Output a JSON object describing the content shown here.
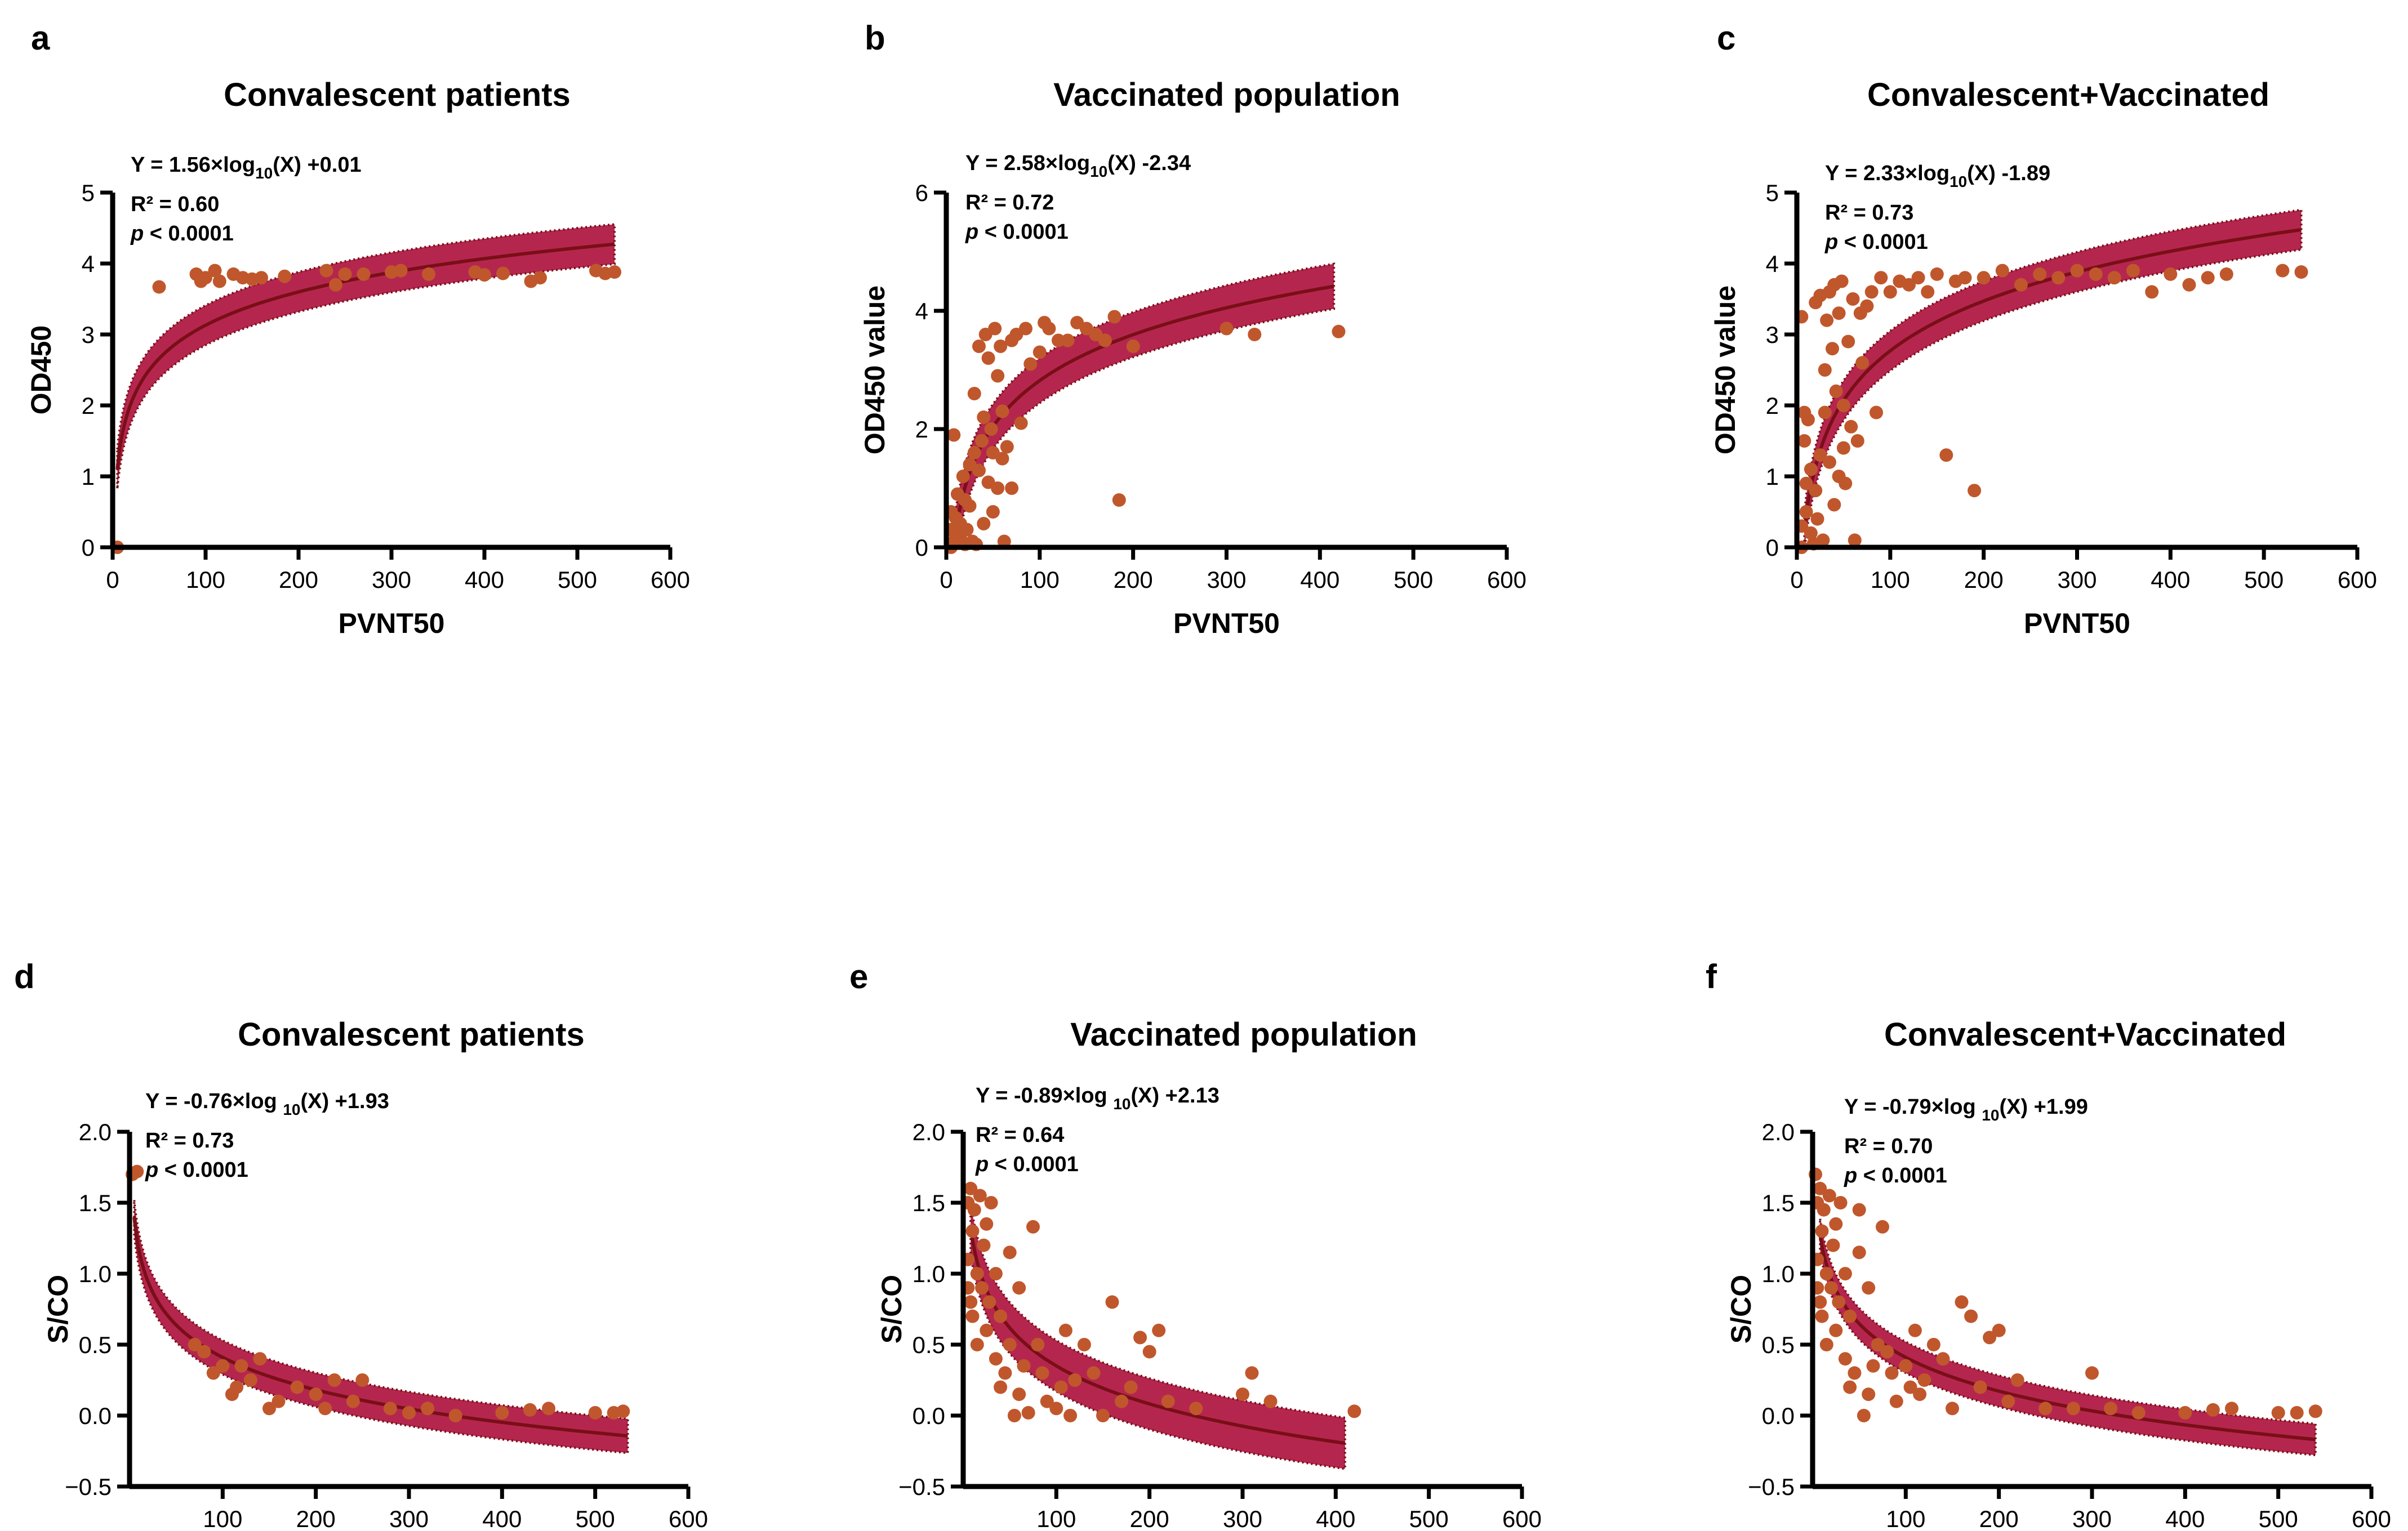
{
  "colors": {
    "band": "#b5264f",
    "fit": "#7a0f17",
    "point": "#c0572c",
    "axis": "#000000"
  },
  "chart_data": [
    {
      "id": "a",
      "letter": "a",
      "type": "scatter",
      "title": "Convalescent patients",
      "xlabel": "PVNT50",
      "ylabel": "OD450",
      "xlim": [
        0,
        600
      ],
      "ylim": [
        0,
        5
      ],
      "xticks": [
        "0",
        "100",
        "200",
        "300",
        "400",
        "500",
        "600"
      ],
      "yticks": [
        "0",
        "1",
        "2",
        "3",
        "4",
        "5"
      ],
      "equation": {
        "lhs": "Y = 1.56×log",
        "sub": "10",
        "rhs": "(X) +0.01"
      },
      "r2": "R² = 0.60",
      "p": "< 0.0001",
      "fit": {
        "a": 1.56,
        "b": 0.01,
        "x_from": 5,
        "x_to": 540,
        "band_halfwidth": 0.28
      },
      "points": [
        [
          5,
          0
        ],
        [
          50,
          3.67
        ],
        [
          90,
          3.85
        ],
        [
          95,
          3.75
        ],
        [
          100,
          3.8
        ],
        [
          110,
          3.9
        ],
        [
          115,
          3.75
        ],
        [
          130,
          3.85
        ],
        [
          140,
          3.8
        ],
        [
          150,
          3.78
        ],
        [
          160,
          3.8
        ],
        [
          185,
          3.82
        ],
        [
          230,
          3.9
        ],
        [
          240,
          3.7
        ],
        [
          250,
          3.85
        ],
        [
          270,
          3.85
        ],
        [
          300,
          3.88
        ],
        [
          310,
          3.9
        ],
        [
          340,
          3.85
        ],
        [
          390,
          3.88
        ],
        [
          400,
          3.84
        ],
        [
          420,
          3.86
        ],
        [
          450,
          3.75
        ],
        [
          460,
          3.8
        ],
        [
          520,
          3.9
        ],
        [
          530,
          3.86
        ],
        [
          540,
          3.88
        ]
      ]
    },
    {
      "id": "b",
      "letter": "b",
      "type": "scatter",
      "title": "Vaccinated population",
      "xlabel": "PVNT50",
      "ylabel": "OD450 value",
      "xlim": [
        0,
        600
      ],
      "ylim": [
        0,
        6
      ],
      "xticks": [
        "0",
        "100",
        "200",
        "300",
        "400",
        "500",
        "600"
      ],
      "yticks": [
        "0",
        "2",
        "4",
        "6"
      ],
      "equation": {
        "lhs": "Y = 2.58×log",
        "sub": "10",
        "rhs": "(X) -2.34"
      },
      "r2": "R² = 0.72",
      "p": "< 0.0001",
      "fit": {
        "a": 2.58,
        "b": -2.34,
        "x_from": 8,
        "x_to": 415,
        "band_halfwidth": 0.38
      },
      "points": [
        [
          5,
          0
        ],
        [
          5,
          0.3
        ],
        [
          5,
          0.6
        ],
        [
          8,
          1.9
        ],
        [
          8,
          0.1
        ],
        [
          10,
          0.5
        ],
        [
          12,
          0.9
        ],
        [
          15,
          0.2
        ],
        [
          15,
          0.4
        ],
        [
          18,
          1.2
        ],
        [
          20,
          0.8
        ],
        [
          20,
          0.05
        ],
        [
          22,
          0.3
        ],
        [
          25,
          1.4
        ],
        [
          25,
          0.7
        ],
        [
          28,
          0.1
        ],
        [
          30,
          1.6
        ],
        [
          30,
          2.6
        ],
        [
          32,
          0.05
        ],
        [
          35,
          1.3
        ],
        [
          35,
          3.4
        ],
        [
          38,
          1.8
        ],
        [
          40,
          2.2
        ],
        [
          40,
          0.4
        ],
        [
          42,
          3.6
        ],
        [
          45,
          3.2
        ],
        [
          45,
          1.1
        ],
        [
          48,
          2.0
        ],
        [
          50,
          1.6
        ],
        [
          50,
          0.6
        ],
        [
          52,
          3.7
        ],
        [
          55,
          2.9
        ],
        [
          55,
          1.0
        ],
        [
          58,
          3.4
        ],
        [
          60,
          2.3
        ],
        [
          60,
          1.5
        ],
        [
          62,
          0.1
        ],
        [
          65,
          1.7
        ],
        [
          70,
          3.5
        ],
        [
          70,
          1.0
        ],
        [
          75,
          3.6
        ],
        [
          80,
          2.1
        ],
        [
          85,
          3.7
        ],
        [
          90,
          3.1
        ],
        [
          100,
          3.3
        ],
        [
          105,
          3.8
        ],
        [
          110,
          3.7
        ],
        [
          120,
          3.5
        ],
        [
          130,
          3.5
        ],
        [
          140,
          3.8
        ],
        [
          150,
          3.7
        ],
        [
          160,
          3.6
        ],
        [
          170,
          3.5
        ],
        [
          180,
          3.9
        ],
        [
          185,
          0.8
        ],
        [
          200,
          3.4
        ],
        [
          300,
          3.7
        ],
        [
          330,
          3.6
        ],
        [
          420,
          3.65
        ]
      ]
    },
    {
      "id": "c",
      "letter": "c",
      "type": "scatter",
      "title": "Convalescent+Vaccinated",
      "xlabel": "PVNT50",
      "ylabel": "OD450 value",
      "xlim": [
        0,
        600
      ],
      "ylim": [
        0,
        5
      ],
      "xticks": [
        "0",
        "100",
        "200",
        "300",
        "400",
        "500",
        "600"
      ],
      "yticks": [
        "0",
        "1",
        "2",
        "3",
        "4",
        "5"
      ],
      "equation": {
        "lhs": "Y = 2.33×log",
        "sub": "10",
        "rhs": "(X) -1.89"
      },
      "r2": "R² = 0.73",
      "p": "< 0.0001",
      "fit": {
        "a": 2.33,
        "b": -1.89,
        "x_from": 8,
        "x_to": 540,
        "band_halfwidth": 0.28
      },
      "points": [
        [
          5,
          0
        ],
        [
          5,
          0.3
        ],
        [
          5,
          3.25
        ],
        [
          8,
          1.9
        ],
        [
          8,
          1.5
        ],
        [
          10,
          0.5
        ],
        [
          10,
          0.9
        ],
        [
          12,
          1.8
        ],
        [
          15,
          0.2
        ],
        [
          15,
          1.1
        ],
        [
          18,
          0.05
        ],
        [
          20,
          0.8
        ],
        [
          20,
          3.45
        ],
        [
          22,
          0.4
        ],
        [
          25,
          1.3
        ],
        [
          25,
          3.55
        ],
        [
          28,
          0.1
        ],
        [
          30,
          1.9
        ],
        [
          30,
          2.5
        ],
        [
          32,
          3.2
        ],
        [
          35,
          1.2
        ],
        [
          35,
          3.6
        ],
        [
          38,
          2.8
        ],
        [
          40,
          3.7
        ],
        [
          40,
          0.6
        ],
        [
          42,
          2.2
        ],
        [
          45,
          3.3
        ],
        [
          45,
          1.0
        ],
        [
          48,
          3.75
        ],
        [
          50,
          2.0
        ],
        [
          50,
          1.4
        ],
        [
          52,
          0.9
        ],
        [
          55,
          2.9
        ],
        [
          58,
          1.7
        ],
        [
          60,
          3.5
        ],
        [
          62,
          0.1
        ],
        [
          65,
          1.5
        ],
        [
          68,
          3.3
        ],
        [
          70,
          2.6
        ],
        [
          75,
          3.4
        ],
        [
          80,
          3.6
        ],
        [
          85,
          1.9
        ],
        [
          90,
          3.8
        ],
        [
          100,
          3.6
        ],
        [
          110,
          3.75
        ],
        [
          120,
          3.7
        ],
        [
          130,
          3.8
        ],
        [
          140,
          3.6
        ],
        [
          150,
          3.85
        ],
        [
          160,
          1.3
        ],
        [
          170,
          3.75
        ],
        [
          180,
          3.8
        ],
        [
          190,
          0.8
        ],
        [
          200,
          3.8
        ],
        [
          220,
          3.9
        ],
        [
          240,
          3.7
        ],
        [
          260,
          3.85
        ],
        [
          280,
          3.8
        ],
        [
          300,
          3.9
        ],
        [
          320,
          3.85
        ],
        [
          340,
          3.8
        ],
        [
          360,
          3.9
        ],
        [
          380,
          3.6
        ],
        [
          400,
          3.85
        ],
        [
          420,
          3.7
        ],
        [
          440,
          3.8
        ],
        [
          460,
          3.85
        ],
        [
          520,
          3.9
        ],
        [
          540,
          3.88
        ]
      ]
    },
    {
      "id": "d",
      "letter": "d",
      "type": "scatter",
      "title": "Convalescent patients",
      "xlabel": "PVNT50",
      "ylabel": "S/CO",
      "xlim": [
        0,
        600
      ],
      "ylim": [
        -0.5,
        2.0
      ],
      "xticks": [
        "100",
        "200",
        "300",
        "400",
        "500",
        "600"
      ],
      "yticks": [
        "−0.5",
        "0.0",
        "0.5",
        "1.0",
        "1.5",
        "2.0"
      ],
      "equation": {
        "lhs": "Y = -0.76×log ",
        "sub": "10",
        "rhs": "(X) +1.93"
      },
      "r2": "R² = 0.73",
      "p": "< 0.0001",
      "fit": {
        "a": -0.76,
        "b": 1.93,
        "x_from": 5,
        "x_to": 535,
        "band_halfwidth": 0.12
      },
      "points": [
        [
          3,
          1.7
        ],
        [
          8,
          1.72
        ],
        [
          70,
          0.5
        ],
        [
          80,
          0.45
        ],
        [
          90,
          0.3
        ],
        [
          100,
          0.35
        ],
        [
          110,
          0.15
        ],
        [
          115,
          0.2
        ],
        [
          120,
          0.35
        ],
        [
          130,
          0.25
        ],
        [
          140,
          0.4
        ],
        [
          150,
          0.05
        ],
        [
          160,
          0.1
        ],
        [
          180,
          0.2
        ],
        [
          200,
          0.15
        ],
        [
          210,
          0.05
        ],
        [
          220,
          0.25
        ],
        [
          240,
          0.1
        ],
        [
          250,
          0.25
        ],
        [
          280,
          0.05
        ],
        [
          300,
          0.02
        ],
        [
          320,
          0.05
        ],
        [
          350,
          0.0
        ],
        [
          400,
          0.02
        ],
        [
          430,
          0.04
        ],
        [
          450,
          0.05
        ],
        [
          500,
          0.02
        ],
        [
          520,
          0.02
        ],
        [
          530,
          0.03
        ]
      ]
    },
    {
      "id": "e",
      "letter": "e",
      "type": "scatter",
      "title": "Vaccinated population",
      "xlabel": "PVNT50",
      "ylabel": "S/CO",
      "xlim": [
        0,
        600
      ],
      "ylim": [
        -0.5,
        2.0
      ],
      "xticks": [
        "100",
        "200",
        "300",
        "400",
        "500",
        "600"
      ],
      "yticks": [
        "−0.5",
        "0.0",
        "0.5",
        "1.0",
        "1.5",
        "2.0"
      ],
      "equation": {
        "lhs": "Y = -0.89×log ",
        "sub": "10",
        "rhs": "(X) +2.13"
      },
      "r2": "R² = 0.64",
      "p": "< 0.0001",
      "fit": {
        "a": -0.89,
        "b": 2.13,
        "x_from": 8,
        "x_to": 410,
        "band_halfwidth": 0.18
      },
      "points": [
        [
          5,
          1.5
        ],
        [
          5,
          1.1
        ],
        [
          5,
          0.9
        ],
        [
          8,
          1.6
        ],
        [
          8,
          0.8
        ],
        [
          10,
          1.3
        ],
        [
          10,
          0.7
        ],
        [
          12,
          1.45
        ],
        [
          15,
          1.0
        ],
        [
          15,
          0.5
        ],
        [
          18,
          1.55
        ],
        [
          20,
          0.9
        ],
        [
          22,
          1.2
        ],
        [
          25,
          0.6
        ],
        [
          25,
          1.35
        ],
        [
          28,
          0.8
        ],
        [
          30,
          1.5
        ],
        [
          35,
          0.4
        ],
        [
          35,
          1.0
        ],
        [
          40,
          0.7
        ],
        [
          40,
          0.2
        ],
        [
          45,
          0.3
        ],
        [
          50,
          1.15
        ],
        [
          50,
          0.5
        ],
        [
          55,
          0.0
        ],
        [
          60,
          0.9
        ],
        [
          60,
          0.15
        ],
        [
          65,
          0.35
        ],
        [
          70,
          0.02
        ],
        [
          75,
          1.33
        ],
        [
          80,
          0.5
        ],
        [
          85,
          0.3
        ],
        [
          90,
          0.1
        ],
        [
          100,
          0.05
        ],
        [
          105,
          0.2
        ],
        [
          110,
          0.6
        ],
        [
          115,
          0.0
        ],
        [
          120,
          0.25
        ],
        [
          130,
          0.5
        ],
        [
          140,
          0.3
        ],
        [
          150,
          0.0
        ],
        [
          160,
          0.8
        ],
        [
          170,
          0.1
        ],
        [
          180,
          0.2
        ],
        [
          190,
          0.55
        ],
        [
          200,
          0.45
        ],
        [
          210,
          0.6
        ],
        [
          220,
          0.1
        ],
        [
          250,
          0.05
        ],
        [
          300,
          0.15
        ],
        [
          310,
          0.3
        ],
        [
          330,
          0.1
        ],
        [
          420,
          0.03
        ]
      ]
    },
    {
      "id": "f",
      "letter": "f",
      "type": "scatter",
      "title": "Convalescent+Vaccinated",
      "xlabel": "PVNT50",
      "ylabel": "S/CO",
      "xlim": [
        0,
        600
      ],
      "ylim": [
        -0.5,
        2.0
      ],
      "xticks": [
        "100",
        "200",
        "300",
        "400",
        "500",
        "600"
      ],
      "yticks": [
        "−0.5",
        "0.0",
        "0.5",
        "1.0",
        "1.5",
        "2.0"
      ],
      "equation": {
        "lhs": "Y = -0.79×log ",
        "sub": "10",
        "rhs": "(X) +1.99"
      },
      "r2": "R² = 0.70",
      "p": "< 0.0001",
      "fit": {
        "a": -0.79,
        "b": 1.99,
        "x_from": 8,
        "x_to": 540,
        "band_halfwidth": 0.11
      },
      "points": [
        [
          3,
          1.7
        ],
        [
          5,
          1.5
        ],
        [
          5,
          1.1
        ],
        [
          5,
          0.9
        ],
        [
          8,
          1.6
        ],
        [
          8,
          0.8
        ],
        [
          10,
          1.3
        ],
        [
          10,
          0.7
        ],
        [
          12,
          1.45
        ],
        [
          15,
          1.0
        ],
        [
          15,
          0.5
        ],
        [
          18,
          1.55
        ],
        [
          20,
          0.9
        ],
        [
          22,
          1.2
        ],
        [
          25,
          0.6
        ],
        [
          25,
          1.35
        ],
        [
          28,
          0.8
        ],
        [
          30,
          1.5
        ],
        [
          35,
          0.4
        ],
        [
          35,
          1.0
        ],
        [
          40,
          0.7
        ],
        [
          40,
          0.2
        ],
        [
          45,
          0.3
        ],
        [
          50,
          1.15
        ],
        [
          50,
          1.45
        ],
        [
          55,
          0.0
        ],
        [
          60,
          0.9
        ],
        [
          60,
          0.15
        ],
        [
          65,
          0.35
        ],
        [
          70,
          0.5
        ],
        [
          75,
          1.33
        ],
        [
          80,
          0.45
        ],
        [
          85,
          0.3
        ],
        [
          90,
          0.1
        ],
        [
          100,
          0.35
        ],
        [
          105,
          0.2
        ],
        [
          110,
          0.6
        ],
        [
          115,
          0.15
        ],
        [
          120,
          0.25
        ],
        [
          130,
          0.5
        ],
        [
          140,
          0.4
        ],
        [
          150,
          0.05
        ],
        [
          160,
          0.8
        ],
        [
          170,
          0.7
        ],
        [
          180,
          0.2
        ],
        [
          190,
          0.55
        ],
        [
          200,
          0.6
        ],
        [
          210,
          0.1
        ],
        [
          220,
          0.25
        ],
        [
          250,
          0.05
        ],
        [
          280,
          0.05
        ],
        [
          300,
          0.3
        ],
        [
          320,
          0.05
        ],
        [
          350,
          0.02
        ],
        [
          400,
          0.02
        ],
        [
          430,
          0.04
        ],
        [
          450,
          0.05
        ],
        [
          500,
          0.02
        ],
        [
          520,
          0.02
        ],
        [
          540,
          0.03
        ]
      ]
    }
  ]
}
